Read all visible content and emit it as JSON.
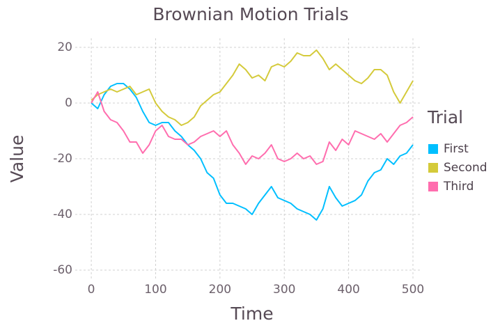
{
  "chart_data": {
    "type": "line",
    "title": "Brownian Motion Trials",
    "x_label": "Time",
    "y_label": "Value",
    "legend_title": "Trial",
    "x": [
      0,
      10,
      20,
      30,
      40,
      50,
      60,
      70,
      80,
      90,
      100,
      110,
      120,
      130,
      140,
      150,
      160,
      170,
      180,
      190,
      200,
      210,
      220,
      230,
      240,
      250,
      260,
      270,
      280,
      290,
      300,
      310,
      320,
      330,
      340,
      350,
      360,
      370,
      380,
      390,
      400,
      410,
      420,
      430,
      440,
      450,
      460,
      470,
      480,
      490,
      500
    ],
    "series": [
      {
        "name": "First",
        "color": "#00bfff",
        "values": [
          0,
          -2,
          3,
          6,
          7,
          7,
          5,
          2,
          -3,
          -7,
          -8,
          -7,
          -7,
          -10,
          -12,
          -15,
          -17,
          -20,
          -25,
          -27,
          -33,
          -36,
          -36,
          -37,
          -38,
          -40,
          -36,
          -33,
          -30,
          -34,
          -35,
          -36,
          -38,
          -39,
          -40,
          -42,
          -38,
          -30,
          -34,
          -37,
          -36,
          -35,
          -33,
          -28,
          -25,
          -24,
          -20,
          -22,
          -19,
          -18,
          -15
        ]
      },
      {
        "name": "Second",
        "color": "#d4ca3a",
        "values": [
          1,
          3,
          4,
          5,
          4,
          5,
          6,
          3,
          4,
          5,
          0,
          -3,
          -5,
          -6,
          -8,
          -7,
          -5,
          -1,
          1,
          3,
          4,
          7,
          10,
          14,
          12,
          9,
          10,
          8,
          13,
          14,
          13,
          15,
          18,
          17,
          17,
          19,
          16,
          12,
          14,
          12,
          10,
          8,
          7,
          9,
          12,
          12,
          10,
          4,
          0,
          4,
          8
        ]
      },
      {
        "name": "Third",
        "color": "#ff6dae",
        "values": [
          0,
          4,
          -3,
          -6,
          -7,
          -10,
          -14,
          -14,
          -18,
          -15,
          -10,
          -8,
          -12,
          -13,
          -13,
          -15,
          -14,
          -12,
          -11,
          -10,
          -12,
          -10,
          -15,
          -18,
          -22,
          -19,
          -20,
          -18,
          -15,
          -20,
          -21,
          -20,
          -18,
          -20,
          -19,
          -22,
          -21,
          -14,
          -17,
          -13,
          -15,
          -10,
          -11,
          -12,
          -13,
          -11,
          -14,
          -11,
          -8,
          -7,
          -5
        ]
      }
    ],
    "xlim": [
      -25,
      513
    ],
    "ylim": [
      -63,
      23.25
    ],
    "xticks": [
      0,
      100,
      200,
      300,
      400,
      500
    ],
    "yticks": [
      -60,
      -40,
      -20,
      0,
      20
    ],
    "grid": true
  }
}
